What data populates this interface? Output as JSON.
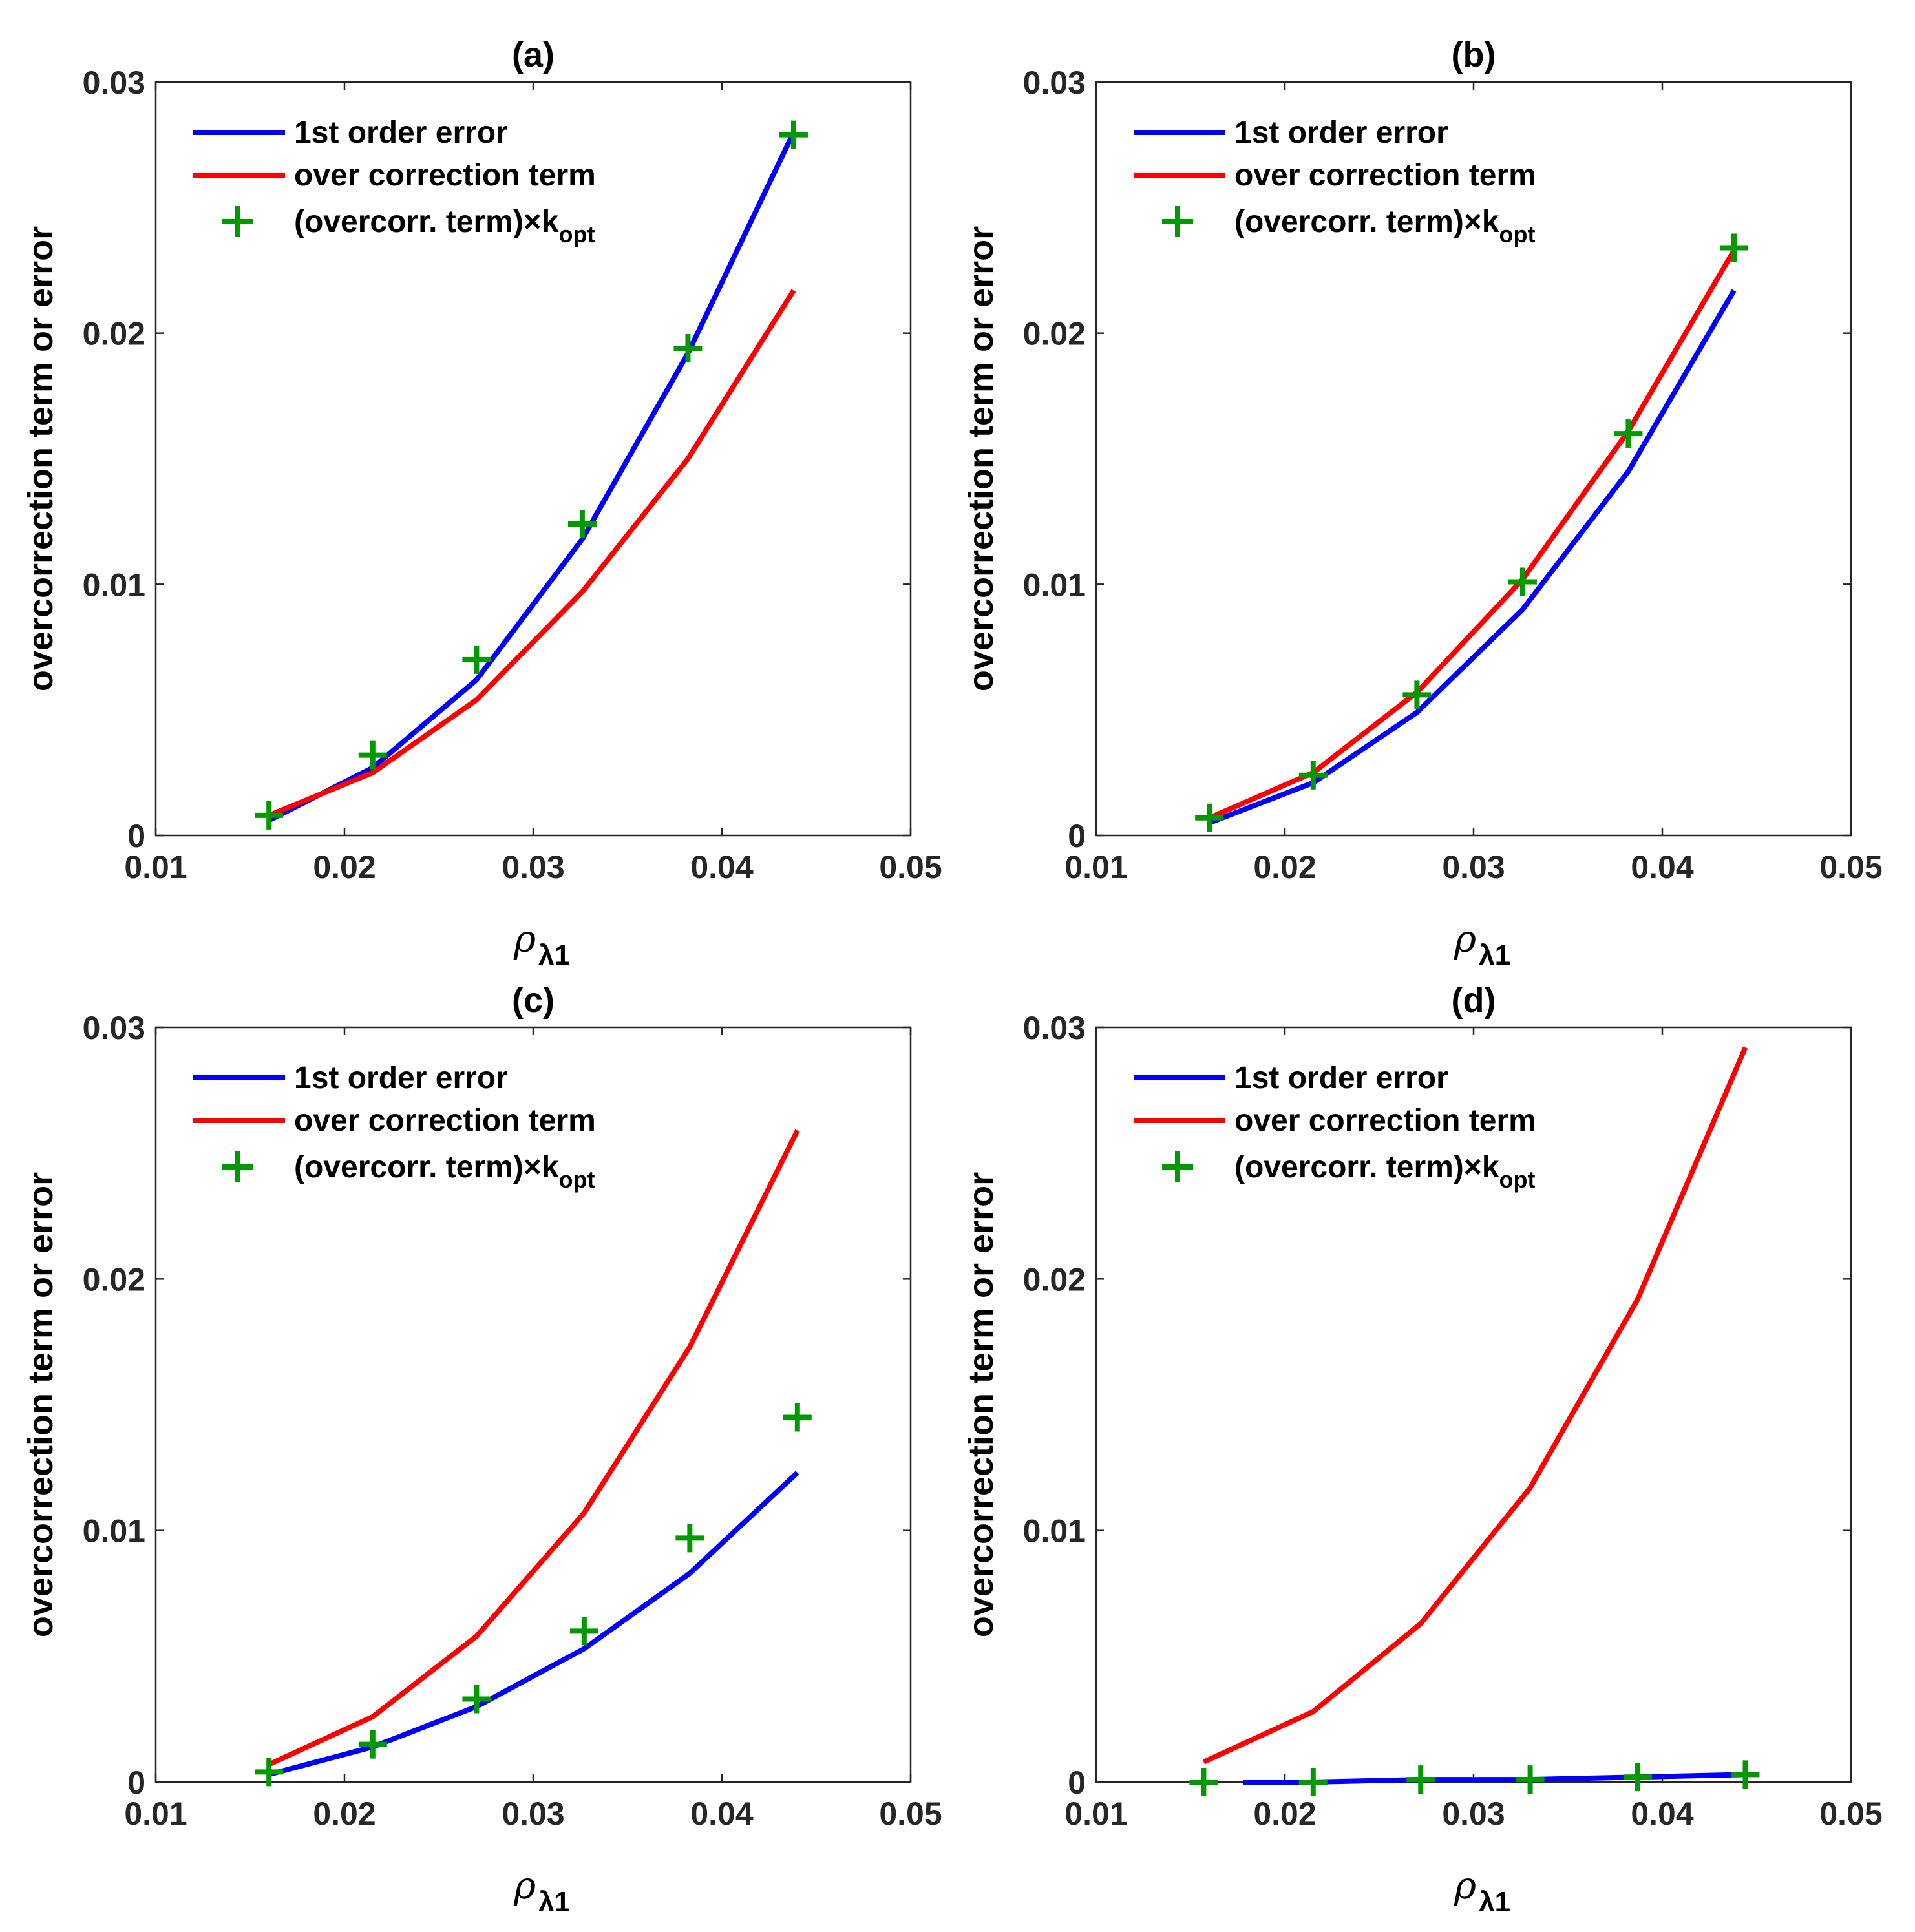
{
  "chart_data": [
    {
      "type": "line",
      "title": "(a)",
      "xlabel": "ρ",
      "xlabel_sub": "λ1",
      "ylabel": "overcorrection term or error",
      "xlim": [
        0.01,
        0.05
      ],
      "ylim": [
        0,
        0.03
      ],
      "xticks": [
        "0.01",
        "0.02",
        "0.03",
        "0.04",
        "0.05"
      ],
      "yticks": [
        "0",
        "0.01",
        "0.02",
        "0.03"
      ],
      "grid": false,
      "legend": {
        "position": "top-left",
        "entries": [
          {
            "label": "1st order error",
            "sub": ""
          },
          {
            "label": "over correction term",
            "sub": ""
          },
          {
            "label": "(overcorr. term)×k",
            "sub": "opt"
          }
        ]
      },
      "series": [
        {
          "name": "1st order error",
          "color": "#0000ff",
          "style": "line",
          "x": [
            0.016,
            0.0215,
            0.027,
            0.0326,
            0.0382,
            0.0438
          ],
          "y": [
            0.0006,
            0.0027,
            0.0062,
            0.0118,
            0.0192,
            0.028
          ]
        },
        {
          "name": "over correction term",
          "color": "#ff0000",
          "style": "line",
          "x": [
            0.016,
            0.0215,
            0.027,
            0.0326,
            0.0382,
            0.0438
          ],
          "y": [
            0.0008,
            0.0025,
            0.0054,
            0.0097,
            0.015,
            0.0217
          ]
        },
        {
          "name": "(overcorr. term)×kopt",
          "color": "#009900",
          "style": "marker-plus",
          "x": [
            0.016,
            0.0215,
            0.027,
            0.0326,
            0.0382,
            0.0438
          ],
          "y": [
            0.0008,
            0.0032,
            0.007,
            0.0124,
            0.0194,
            0.0279
          ]
        }
      ]
    },
    {
      "type": "line",
      "title": "(b)",
      "xlabel": "ρ",
      "xlabel_sub": "λ1",
      "ylabel": "overcorrection term or error",
      "xlim": [
        0.01,
        0.05
      ],
      "ylim": [
        0,
        0.03
      ],
      "xticks": [
        "0.01",
        "0.02",
        "0.03",
        "0.04",
        "0.05"
      ],
      "yticks": [
        "0",
        "0.01",
        "0.02",
        "0.03"
      ],
      "grid": false,
      "legend": {
        "position": "top-left",
        "entries": [
          {
            "label": "1st order error",
            "sub": ""
          },
          {
            "label": "over correction term",
            "sub": ""
          },
          {
            "label": "(overcorr. term)×k",
            "sub": "opt"
          }
        ]
      },
      "series": [
        {
          "name": "1st order error",
          "color": "#0000ff",
          "style": "line",
          "x": [
            0.016,
            0.0215,
            0.027,
            0.0326,
            0.0382,
            0.0438
          ],
          "y": [
            0.0005,
            0.0021,
            0.0049,
            0.009,
            0.0145,
            0.0217
          ]
        },
        {
          "name": "over correction term",
          "color": "#ff0000",
          "style": "line",
          "x": [
            0.016,
            0.0215,
            0.027,
            0.0326,
            0.0382,
            0.0438
          ],
          "y": [
            0.0007,
            0.0025,
            0.0057,
            0.0102,
            0.0161,
            0.0233
          ]
        },
        {
          "name": "(overcorr. term)×kopt",
          "color": "#009900",
          "style": "marker-plus",
          "x": [
            0.016,
            0.0215,
            0.027,
            0.0326,
            0.0382,
            0.0438
          ],
          "y": [
            0.0007,
            0.0024,
            0.0056,
            0.0101,
            0.016,
            0.0234
          ]
        }
      ]
    },
    {
      "type": "line",
      "title": "(c)",
      "xlabel": "ρ",
      "xlabel_sub": "λ1",
      "ylabel": "overcorrection term or error",
      "xlim": [
        0.01,
        0.05
      ],
      "ylim": [
        0,
        0.03
      ],
      "xticks": [
        "0.01",
        "0.02",
        "0.03",
        "0.04",
        "0.05"
      ],
      "yticks": [
        "0",
        "0.01",
        "0.02",
        "0.03"
      ],
      "grid": false,
      "legend": {
        "position": "top-left",
        "entries": [
          {
            "label": "1st order error",
            "sub": ""
          },
          {
            "label": "over correction term",
            "sub": ""
          },
          {
            "label": "(overcorr. term)×k",
            "sub": "opt"
          }
        ]
      },
      "series": [
        {
          "name": "1st order error",
          "color": "#0000ff",
          "style": "line",
          "x": [
            0.016,
            0.0215,
            0.027,
            0.0327,
            0.0383,
            0.044
          ],
          "y": [
            0.0003,
            0.0014,
            0.003,
            0.0053,
            0.0083,
            0.0123
          ]
        },
        {
          "name": "over correction term",
          "color": "#ff0000",
          "style": "line",
          "x": [
            0.016,
            0.0215,
            0.027,
            0.0327,
            0.0383,
            0.044
          ],
          "y": [
            0.0007,
            0.0026,
            0.0058,
            0.0107,
            0.0173,
            0.0259
          ]
        },
        {
          "name": "(overcorr. term)×kopt",
          "color": "#009900",
          "style": "marker-plus",
          "x": [
            0.016,
            0.0215,
            0.027,
            0.0327,
            0.0383,
            0.044
          ],
          "y": [
            0.0004,
            0.0015,
            0.0033,
            0.006,
            0.0097,
            0.0145
          ]
        }
      ]
    },
    {
      "type": "line",
      "title": "(d)",
      "xlabel": "ρ",
      "xlabel_sub": "λ1",
      "ylabel": "overcorrection term or error",
      "xlim": [
        0.01,
        0.05
      ],
      "ylim": [
        0,
        0.03
      ],
      "xticks": [
        "0.01",
        "0.02",
        "0.03",
        "0.04",
        "0.05"
      ],
      "yticks": [
        "0",
        "0.01",
        "0.02",
        "0.03"
      ],
      "grid": false,
      "legend": {
        "position": "top-left",
        "entries": [
          {
            "label": "1st order error",
            "sub": ""
          },
          {
            "label": "over correction term",
            "sub": ""
          },
          {
            "label": "(overcorr. term)×k",
            "sub": "opt"
          }
        ]
      },
      "series": [
        {
          "name": "1st order error",
          "color": "#0000ff",
          "style": "line",
          "x": [
            0.0178,
            0.0215,
            0.0272,
            0.033,
            0.0387,
            0.0444
          ],
          "y": [
            0.0,
            0.0,
            0.0001,
            0.0001,
            0.0002,
            0.0003
          ]
        },
        {
          "name": "over correction term",
          "color": "#ff0000",
          "style": "line",
          "x": [
            0.0157,
            0.0215,
            0.0272,
            0.033,
            0.0387,
            0.0444
          ],
          "y": [
            0.0008,
            0.0028,
            0.0063,
            0.0117,
            0.0192,
            0.0292
          ]
        },
        {
          "name": "(overcorr. term)×kopt",
          "color": "#009900",
          "style": "marker-plus",
          "x": [
            0.0157,
            0.0215,
            0.0272,
            0.033,
            0.0387,
            0.0444
          ],
          "y": [
            0.0,
            0.0,
            0.0001,
            0.0001,
            0.0002,
            0.0003
          ]
        }
      ]
    }
  ]
}
